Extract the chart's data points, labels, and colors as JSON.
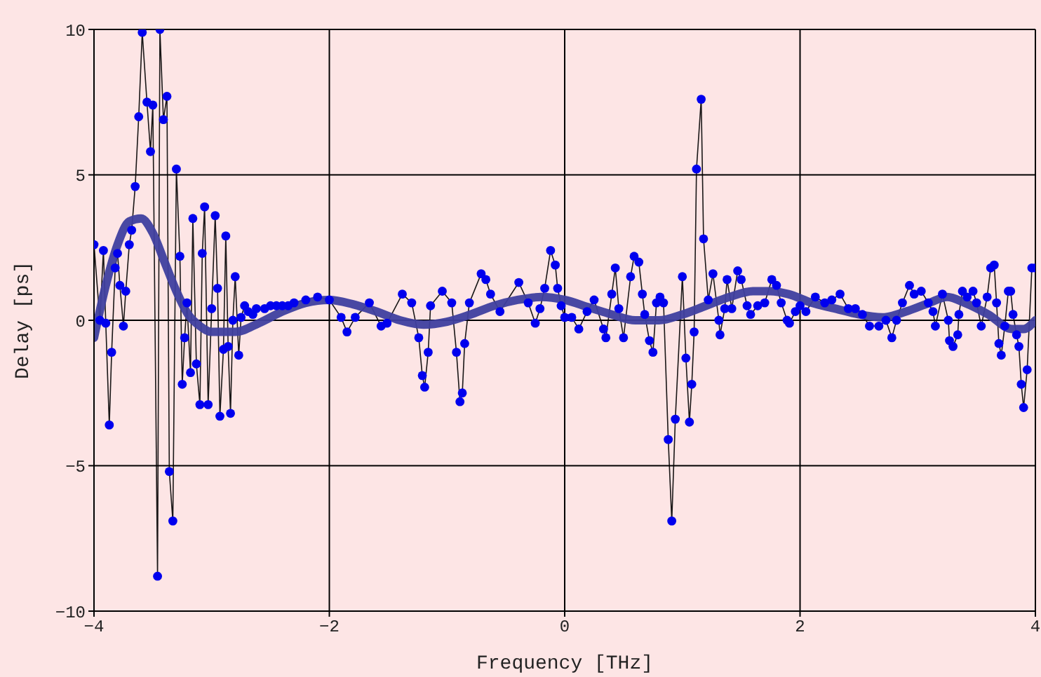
{
  "chart_data": {
    "type": "line",
    "xlabel": "Frequency [THz]",
    "ylabel": "Delay [ps]",
    "xlim": [
      -4,
      4
    ],
    "xticks": [
      -4,
      -2,
      0,
      2,
      4
    ],
    "ylim": [
      -10,
      10
    ],
    "yticks": [
      -10,
      -5,
      0,
      5,
      10
    ],
    "grid": true,
    "legend": false,
    "series": [
      {
        "color": "#0000ee",
        "marker": "circle",
        "x": [
          -4.0,
          -3.95,
          -3.92,
          -3.9,
          -3.87,
          -3.85,
          -3.82,
          -3.8,
          -3.78,
          -3.75,
          -3.73,
          -3.7,
          -3.68,
          -3.65,
          -3.62,
          -3.59,
          -3.55,
          -3.52,
          -3.5,
          -3.46,
          -3.44,
          -3.41,
          -3.38,
          -3.36,
          -3.33,
          -3.3,
          -3.27,
          -3.25,
          -3.23,
          -3.21,
          -3.18,
          -3.16,
          -3.13,
          -3.1,
          -3.08,
          -3.06,
          -3.03,
          -3.0,
          -2.97,
          -2.95,
          -2.93,
          -2.9,
          -2.88,
          -2.86,
          -2.84,
          -2.82,
          -2.8,
          -2.77,
          -2.75,
          -2.72,
          -2.69,
          -2.65,
          -2.62,
          -2.55,
          -2.5,
          -2.45,
          -2.4,
          -2.35,
          -2.3,
          -2.2,
          -2.1,
          -2.0,
          -1.9,
          -1.85,
          -1.78,
          -1.66,
          -1.56,
          -1.51,
          -1.38,
          -1.3,
          -1.24,
          -1.21,
          -1.19,
          -1.16,
          -1.14,
          -1.04,
          -0.96,
          -0.92,
          -0.89,
          -0.87,
          -0.85,
          -0.81,
          -0.71,
          -0.67,
          -0.63,
          -0.55,
          -0.39,
          -0.31,
          -0.25,
          -0.21,
          -0.17,
          -0.12,
          -0.08,
          -0.06,
          -0.03,
          0.0,
          0.06,
          0.12,
          0.19,
          0.25,
          0.33,
          0.35,
          0.4,
          0.43,
          0.46,
          0.5,
          0.56,
          0.59,
          0.63,
          0.66,
          0.68,
          0.72,
          0.75,
          0.78,
          0.81,
          0.84,
          0.88,
          0.91,
          0.94,
          1.0,
          1.03,
          1.06,
          1.08,
          1.1,
          1.12,
          1.16,
          1.18,
          1.22,
          1.26,
          1.31,
          1.32,
          1.36,
          1.38,
          1.42,
          1.47,
          1.5,
          1.55,
          1.58,
          1.64,
          1.7,
          1.76,
          1.8,
          1.84,
          1.89,
          1.91,
          1.96,
          2.0,
          2.05,
          2.13,
          2.21,
          2.27,
          2.34,
          2.41,
          2.47,
          2.53,
          2.59,
          2.67,
          2.73,
          2.78,
          2.82,
          2.87,
          2.93,
          2.97,
          3.03,
          3.09,
          3.13,
          3.15,
          3.21,
          3.26,
          3.27,
          3.3,
          3.34,
          3.35,
          3.38,
          3.42,
          3.47,
          3.5,
          3.54,
          3.59,
          3.62,
          3.65,
          3.67,
          3.69,
          3.71,
          3.74,
          3.77,
          3.79,
          3.81,
          3.84,
          3.86,
          3.88,
          3.9,
          3.93,
          3.97,
          4.0
        ],
        "values": [
          2.6,
          0.0,
          2.4,
          -0.1,
          -3.6,
          -1.1,
          1.8,
          2.3,
          1.2,
          -0.2,
          1.0,
          2.6,
          3.1,
          4.6,
          7.0,
          9.9,
          7.5,
          5.8,
          7.4,
          -8.8,
          10,
          6.9,
          7.7,
          -5.2,
          -6.9,
          5.2,
          2.2,
          -2.2,
          -0.6,
          0.6,
          -1.8,
          3.5,
          -1.5,
          -2.9,
          2.3,
          3.9,
          -2.9,
          0.4,
          3.6,
          1.1,
          -3.3,
          -1.0,
          2.9,
          -0.9,
          -3.2,
          0.0,
          1.5,
          -1.2,
          0.1,
          0.5,
          0.3,
          0.2,
          0.4,
          0.4,
          0.5,
          0.5,
          0.5,
          0.5,
          0.6,
          0.7,
          0.8,
          0.7,
          0.1,
          -0.4,
          0.1,
          0.6,
          -0.2,
          -0.1,
          0.9,
          0.6,
          -0.6,
          -1.9,
          -2.3,
          -1.1,
          0.5,
          1.0,
          0.6,
          -1.1,
          -2.8,
          -2.5,
          -0.8,
          0.6,
          1.6,
          1.4,
          0.9,
          0.3,
          1.3,
          0.6,
          -0.1,
          0.4,
          1.1,
          2.4,
          1.9,
          1.1,
          0.5,
          0.1,
          0.1,
          -0.3,
          0.3,
          0.7,
          -0.3,
          -0.6,
          0.9,
          1.8,
          0.4,
          -0.6,
          1.5,
          2.2,
          2.0,
          0.9,
          0.2,
          -0.7,
          -1.1,
          0.6,
          0.8,
          0.6,
          -4.1,
          -6.9,
          -3.4,
          1.5,
          -1.3,
          -3.5,
          -2.2,
          -0.4,
          5.2,
          7.6,
          2.8,
          0.7,
          1.6,
          0.0,
          -0.5,
          0.4,
          1.4,
          0.4,
          1.7,
          1.4,
          0.5,
          0.2,
          0.5,
          0.6,
          1.4,
          1.2,
          0.6,
          0.0,
          -0.1,
          0.3,
          0.5,
          0.3,
          0.8,
          0.6,
          0.7,
          0.9,
          0.4,
          0.4,
          0.2,
          -0.2,
          -0.2,
          0.0,
          -0.6,
          0.0,
          0.6,
          1.2,
          0.9,
          1.0,
          0.6,
          0.3,
          -0.2,
          0.9,
          0.0,
          -0.7,
          -0.9,
          -0.5,
          0.2,
          1.0,
          0.8,
          1.0,
          0.6,
          -0.2,
          0.8,
          1.8,
          1.9,
          0.6,
          -0.8,
          -1.2,
          -0.2,
          1.0,
          1.0,
          0.2,
          -0.5,
          -0.9,
          -2.2,
          -3.0,
          -1.7,
          1.8,
          1.8
        ]
      },
      {
        "color": "#3f3f9f",
        "marker": "none",
        "x": [
          -4.0,
          -3.9,
          -3.8,
          -3.7,
          -3.6,
          -3.5,
          -3.4,
          -3.3,
          -3.2,
          -3.1,
          -3.0,
          -2.8,
          -2.6,
          -2.4,
          -2.2,
          -2.0,
          -1.8,
          -1.6,
          -1.4,
          -1.2,
          -1.0,
          -0.8,
          -0.6,
          -0.4,
          -0.2,
          0.0,
          0.2,
          0.4,
          0.6,
          0.8,
          1.0,
          1.2,
          1.4,
          1.6,
          1.75,
          1.9,
          2.1,
          2.3,
          2.5,
          2.7,
          2.9,
          3.1,
          3.25,
          3.4,
          3.6,
          3.8,
          3.9,
          4.0
        ],
        "values": [
          -0.6,
          1.2,
          2.6,
          3.4,
          3.5,
          3.0,
          2.0,
          1.0,
          0.2,
          -0.2,
          -0.4,
          -0.4,
          -0.1,
          0.3,
          0.6,
          0.7,
          0.55,
          0.3,
          0.0,
          -0.15,
          -0.05,
          0.2,
          0.5,
          0.7,
          0.8,
          0.7,
          0.45,
          0.2,
          0.0,
          0.0,
          0.2,
          0.5,
          0.8,
          1.0,
          1.0,
          0.9,
          0.6,
          0.4,
          0.2,
          0.1,
          0.3,
          0.6,
          0.8,
          0.6,
          0.2,
          -0.3,
          -0.3,
          0.0
        ]
      }
    ]
  }
}
